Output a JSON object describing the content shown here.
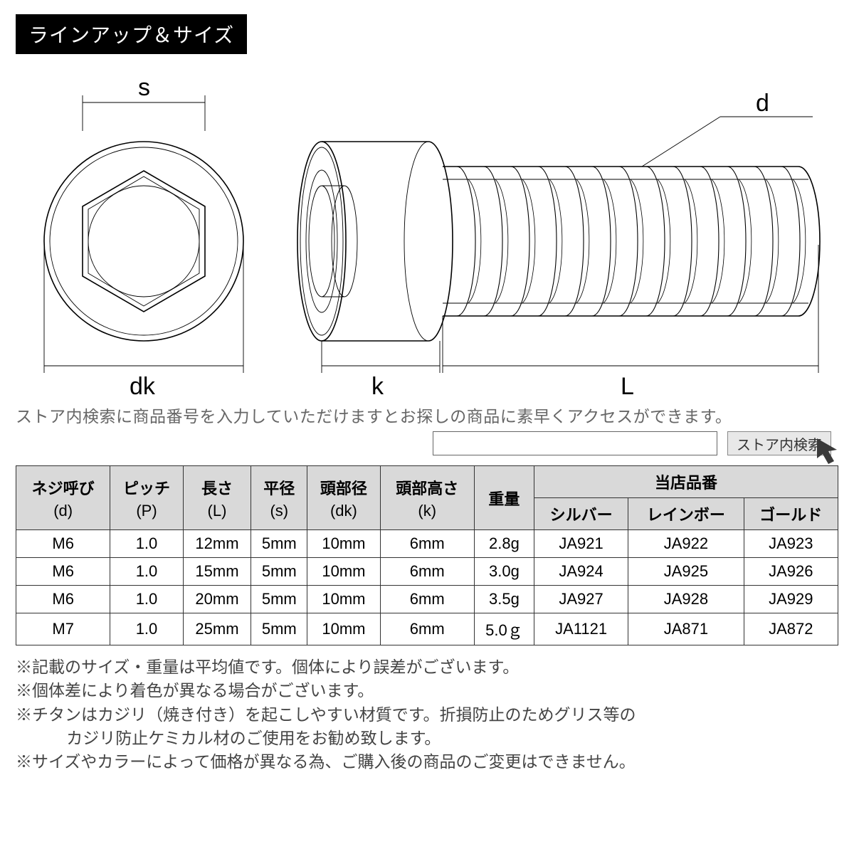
{
  "title": "ラインアップ＆サイズ",
  "diagram": {
    "labels": {
      "s": "s",
      "dk": "dk",
      "k": "k",
      "L": "L",
      "d": "d"
    },
    "stroke": "#000000",
    "stroke_thin": "#000000",
    "line_width_main": 1.6,
    "line_width_thin": 0.9,
    "font_size": 34
  },
  "help_text": "ストア内検索に商品番号を入力していただけますとお探しの商品に素早くアクセスができます。",
  "search": {
    "placeholder": "",
    "button_label": "ストア内検索"
  },
  "table": {
    "group_header": "当店品番",
    "columns_main": [
      {
        "label": "ネジ呼び",
        "sub": "(d)"
      },
      {
        "label": "ピッチ",
        "sub": "(P)"
      },
      {
        "label": "長さ",
        "sub": "(L)"
      },
      {
        "label": "平径",
        "sub": "(s)"
      },
      {
        "label": "頭部径",
        "sub": "(dk)"
      },
      {
        "label": "頭部高さ",
        "sub": "(k)"
      },
      {
        "label": "重量",
        "sub": ""
      }
    ],
    "columns_group": [
      {
        "label": "シルバー"
      },
      {
        "label": "レインボー"
      },
      {
        "label": "ゴールド"
      }
    ],
    "rows": [
      [
        "M6",
        "1.0",
        "12mm",
        "5mm",
        "10mm",
        "6mm",
        "2.8g",
        "JA921",
        "JA922",
        "JA923"
      ],
      [
        "M6",
        "1.0",
        "15mm",
        "5mm",
        "10mm",
        "6mm",
        "3.0g",
        "JA924",
        "JA925",
        "JA926"
      ],
      [
        "M6",
        "1.0",
        "20mm",
        "5mm",
        "10mm",
        "6mm",
        "3.5g",
        "JA927",
        "JA928",
        "JA929"
      ],
      [
        "M7",
        "1.0",
        "25mm",
        "5mm",
        "10mm",
        "6mm",
        "5.0ｇ",
        "JA1121",
        "JA871",
        "JA872"
      ]
    ]
  },
  "notes": [
    "※記載のサイズ・重量は平均値です。個体により誤差がございます。",
    "※個体差により着色が異なる場合がございます。",
    "※チタンはカジリ（焼き付き）を起こしやすい材質です。折損防止のためグリス等の",
    "　カジリ防止ケミカル材のご使用をお勧め致します。",
    "※サイズやカラーによって価格が異なる為、ご購入後の商品のご変更はできません。"
  ],
  "notes_indent_indices": [
    3
  ]
}
